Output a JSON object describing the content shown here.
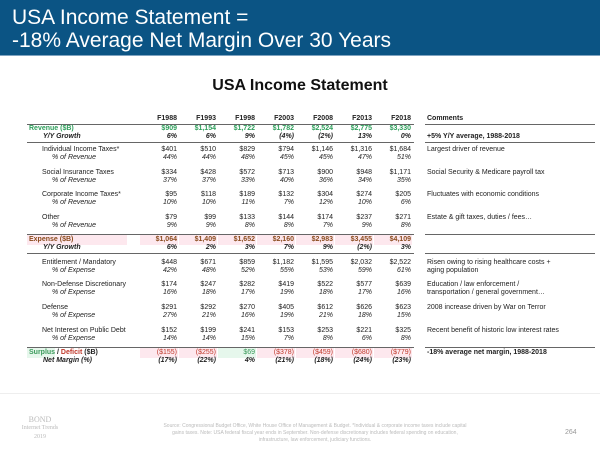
{
  "header": {
    "title_line1": "USA Income Statement =",
    "title_line2": "-18% Average Net Margin Over 30 Years"
  },
  "subtitle": "USA Income Statement",
  "table": {
    "columns": [
      "F1988",
      "F1993",
      "F1998",
      "F2003",
      "F2008",
      "F2013",
      "F2018"
    ],
    "comments_header": "Comments",
    "rows": [
      {
        "kind": "revenue",
        "label": "Revenue ($B)",
        "values": [
          "$909",
          "$1,154",
          "$1,722",
          "$1,782",
          "$2,524",
          "$2,775",
          "$3,330"
        ],
        "comment": ""
      },
      {
        "kind": "growth",
        "label": "Y/Y Growth",
        "values": [
          "6%",
          "6%",
          "9%",
          "(4%)",
          "(2%)",
          "13%",
          "0%"
        ],
        "comment": "+5% Y/Y average, 1988-2018"
      },
      {
        "kind": "item",
        "label": "Individual Income Taxes*",
        "values": [
          "$401",
          "$510",
          "$829",
          "$794",
          "$1,146",
          "$1,316",
          "$1,684"
        ],
        "comment": "Largest driver of revenue"
      },
      {
        "kind": "pct",
        "label": "% of Revenue",
        "values": [
          "44%",
          "44%",
          "48%",
          "45%",
          "45%",
          "47%",
          "51%"
        ],
        "comment": ""
      },
      {
        "kind": "item",
        "label": "Social Insurance Taxes",
        "values": [
          "$334",
          "$428",
          "$572",
          "$713",
          "$900",
          "$948",
          "$1,171"
        ],
        "comment": "Social Security & Medicare payroll tax"
      },
      {
        "kind": "pct",
        "label": "% of Revenue",
        "values": [
          "37%",
          "37%",
          "33%",
          "40%",
          "36%",
          "34%",
          "35%"
        ],
        "comment": ""
      },
      {
        "kind": "item",
        "label": "Corporate Income Taxes*",
        "values": [
          "$95",
          "$118",
          "$189",
          "$132",
          "$304",
          "$274",
          "$205"
        ],
        "comment": "Fluctuates with economic conditions"
      },
      {
        "kind": "pct",
        "label": "% of Revenue",
        "values": [
          "10%",
          "10%",
          "11%",
          "7%",
          "12%",
          "10%",
          "6%"
        ],
        "comment": ""
      },
      {
        "kind": "item",
        "label": "Other",
        "values": [
          "$79",
          "$99",
          "$133",
          "$144",
          "$174",
          "$237",
          "$271"
        ],
        "comment": "Estate & gift taxes, duties / fees…"
      },
      {
        "kind": "pct",
        "label": "% of Revenue",
        "values": [
          "9%",
          "9%",
          "8%",
          "8%",
          "7%",
          "9%",
          "8%"
        ],
        "comment": ""
      },
      {
        "kind": "expense",
        "label": "Expense ($B)",
        "values": [
          "$1,064",
          "$1,409",
          "$1,652",
          "$2,160",
          "$2,983",
          "$3,455",
          "$4,109"
        ],
        "comment": ""
      },
      {
        "kind": "growth",
        "label": "Y/Y Growth",
        "values": [
          "6%",
          "2%",
          "3%",
          "7%",
          "9%",
          "(2%)",
          "3%"
        ],
        "comment": ""
      },
      {
        "kind": "item",
        "label": "Entitlement / Mandatory",
        "values": [
          "$448",
          "$671",
          "$859",
          "$1,182",
          "$1,595",
          "$2,032",
          "$2,522"
        ],
        "comment": "Risen owing to rising healthcare costs +"
      },
      {
        "kind": "pct",
        "label": "% of Expense",
        "values": [
          "42%",
          "48%",
          "52%",
          "55%",
          "53%",
          "59%",
          "61%"
        ],
        "comment": "aging population"
      },
      {
        "kind": "item",
        "label": "Non-Defense Discretionary",
        "values": [
          "$174",
          "$247",
          "$282",
          "$419",
          "$522",
          "$577",
          "$639"
        ],
        "comment": "Education / law enforcement /"
      },
      {
        "kind": "pct",
        "label": "% of Expense",
        "values": [
          "16%",
          "18%",
          "17%",
          "19%",
          "18%",
          "17%",
          "16%"
        ],
        "comment": "transportation / general government…"
      },
      {
        "kind": "item",
        "label": "Defense",
        "values": [
          "$291",
          "$292",
          "$270",
          "$405",
          "$612",
          "$626",
          "$623"
        ],
        "comment": "2008 increase driven by War on Terror"
      },
      {
        "kind": "pct",
        "label": "% of Expense",
        "values": [
          "27%",
          "21%",
          "16%",
          "19%",
          "21%",
          "18%",
          "15%"
        ],
        "comment": ""
      },
      {
        "kind": "item",
        "label": "Net Interest on Public Debt",
        "values": [
          "$152",
          "$199",
          "$241",
          "$153",
          "$253",
          "$221",
          "$325"
        ],
        "comment": "Recent benefit of historic low interest rates"
      },
      {
        "kind": "pct",
        "label": "% of Expense",
        "values": [
          "14%",
          "14%",
          "15%",
          "7%",
          "8%",
          "6%",
          "8%"
        ],
        "comment": ""
      },
      {
        "kind": "surplus",
        "label_surplus": "Surplus",
        "label_sep": " / ",
        "label_deficit": "Deficit",
        "label_unit": " ($B)",
        "values": [
          "($155)",
          "($255)",
          "$69",
          "($378)",
          "($459)",
          "($680)",
          "($779)"
        ],
        "comment": "-18% average net margin, 1988-2018"
      },
      {
        "kind": "margin",
        "label": "Net Margin (%)",
        "values": [
          "(17%)",
          "(22%)",
          "4%",
          "(21%)",
          "(18%)",
          "(24%)",
          "(23%)"
        ],
        "comment": ""
      }
    ]
  },
  "colors": {
    "header": "#0b5484",
    "revenue": "#2e9e5b",
    "expense": "#8a4a1c",
    "deficit": "#c0392b",
    "surplus": "#3a9a5a"
  },
  "footer": {
    "logo_line1": "BOND",
    "logo_line2": "Internet Trends",
    "logo_line3": "2019",
    "source": "Source: Congressional Budget Office, White House Office of Management & Budget. *Individual & corporate income taxes include capital gains taxes. Note: USA federal fiscal year ends in September. Non-defense discretionary includes federal spending on education, infrastructure, law enforcement, judiciary functions.",
    "page_number": "264"
  }
}
